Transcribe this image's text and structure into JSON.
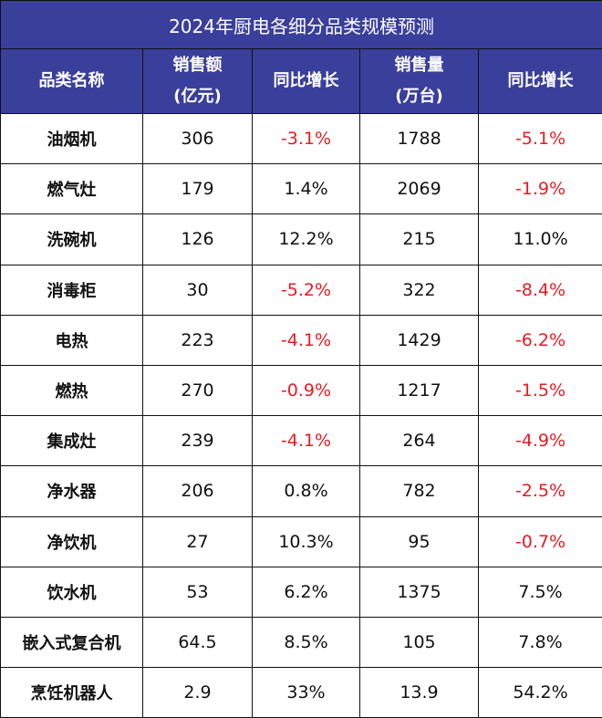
{
  "chart_data": {
    "type": "table",
    "title": "2024年厨电各细分品类规模预测",
    "columns": [
      "品类名称",
      "销售额(亿元)",
      "同比增长",
      "销售量(万台)",
      "同比增长"
    ],
    "header_lines": [
      [
        "品类名称"
      ],
      [
        "销售额",
        "(亿元)"
      ],
      [
        "同比增长"
      ],
      [
        "销售量",
        "(万台)"
      ],
      [
        "同比增长"
      ]
    ],
    "rows": [
      [
        "油烟机",
        "306",
        "-3.1%",
        "1788",
        "-5.1%"
      ],
      [
        "燃气灶",
        "179",
        "1.4%",
        "2069",
        "-1.9%"
      ],
      [
        "洗碗机",
        "126",
        "12.2%",
        "215",
        "11.0%"
      ],
      [
        "消毒柜",
        "30",
        "-5.2%",
        "322",
        "-8.4%"
      ],
      [
        "电热",
        "223",
        "-4.1%",
        "1429",
        "-6.2%"
      ],
      [
        "燃热",
        "270",
        "-0.9%",
        "1217",
        "-1.5%"
      ],
      [
        "集成灶",
        "239",
        "-4.1%",
        "264",
        "-4.9%"
      ],
      [
        "净水器",
        "206",
        "0.8%",
        "782",
        "-2.5%"
      ],
      [
        "净饮机",
        "27",
        "10.3%",
        "95",
        "-0.7%"
      ],
      [
        "饮水机",
        "53",
        "6.2%",
        "1375",
        "7.5%"
      ],
      [
        "嵌入式复合机",
        "64.5",
        "8.5%",
        "105",
        "7.8%"
      ],
      [
        "烹饪机器人",
        "2.9",
        "33%",
        "13.9",
        "54.2%"
      ]
    ],
    "colors": {
      "header_bg": "#3a3f9c",
      "header_text": "#ffffff",
      "negative_text": "#e81b23",
      "body_text": "#111111"
    }
  }
}
